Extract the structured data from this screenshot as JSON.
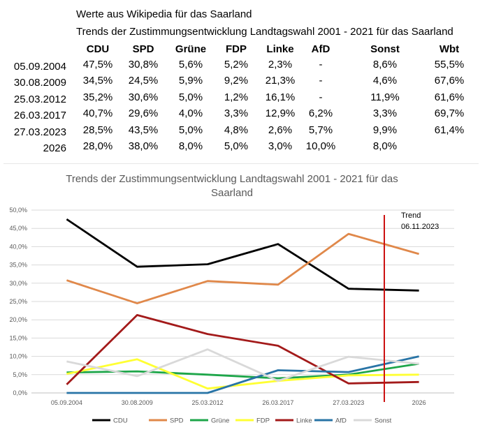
{
  "header": {
    "line1": "Werte aus Wikipedia für das Saarland",
    "line2": "Trends der Zustimmungsentwicklung Landtagswahl 2001 - 2021 für das Saarland"
  },
  "table": {
    "columns": [
      "CDU",
      "SPD",
      "Grüne",
      "FDP",
      "Linke",
      "AfD",
      "Sonst",
      "Wbt"
    ],
    "rows": [
      {
        "date": "05.09.2004",
        "cells": [
          "47,5%",
          "30,8%",
          "5,6%",
          "5,2%",
          "2,3%",
          "-",
          "8,6%",
          "55,5%"
        ]
      },
      {
        "date": "30.08.2009",
        "cells": [
          "34,5%",
          "24,5%",
          "5,9%",
          "9,2%",
          "21,3%",
          "-",
          "4,6%",
          "67,6%"
        ]
      },
      {
        "date": "25.03.2012",
        "cells": [
          "35,2%",
          "30,6%",
          "5,0%",
          "1,2%",
          "16,1%",
          "-",
          "11,9%",
          "61,6%"
        ]
      },
      {
        "date": "26.03.2017",
        "cells": [
          "40,7%",
          "29,6%",
          "4,0%",
          "3,3%",
          "12,9%",
          "6,2%",
          "3,3%",
          "69,7%"
        ]
      },
      {
        "date": "27.03.2023",
        "cells": [
          "28,5%",
          "43,5%",
          "5,0%",
          "4,8%",
          "2,6%",
          "5,7%",
          "9,9%",
          "61,4%"
        ]
      },
      {
        "date": "2026",
        "cells": [
          "28,0%",
          "38,0%",
          "8,0%",
          "5,0%",
          "3,0%",
          "10,0%",
          "8,0%",
          ""
        ]
      }
    ]
  },
  "chart_data": {
    "type": "line",
    "title_line1": "Trends der Zustimmungsentwicklung Landtagswahl 2001 - 2021 für das",
    "title_line2": "Saarland",
    "categories": [
      "05.09.2004",
      "30.08.2009",
      "25.03.2012",
      "26.03.2017",
      "27.03.2023",
      "2026"
    ],
    "ylim": [
      0,
      50
    ],
    "yticks": [
      "0,0%",
      "5,0%",
      "10,0%",
      "15,0%",
      "20,0%",
      "25,0%",
      "30,0%",
      "35,0%",
      "40,0%",
      "45,0%",
      "50,0%"
    ],
    "grid": true,
    "legend_position": "bottom",
    "annotation": {
      "line1": "Trend",
      "line2": "06.11.2023",
      "color": "#cc1111"
    },
    "series": [
      {
        "name": "CDU",
        "color": "#000000",
        "values": [
          47.5,
          34.5,
          35.2,
          40.7,
          28.5,
          28.0
        ]
      },
      {
        "name": "SPD",
        "color": "#e0884a",
        "values": [
          30.8,
          24.5,
          30.6,
          29.6,
          43.5,
          38.0
        ]
      },
      {
        "name": "Grüne",
        "color": "#1ea64a",
        "values": [
          5.6,
          5.9,
          5.0,
          4.0,
          5.0,
          8.0
        ]
      },
      {
        "name": "FDP",
        "color": "#ffff33",
        "values": [
          5.2,
          9.2,
          1.2,
          3.3,
          4.8,
          5.0
        ]
      },
      {
        "name": "Linke",
        "color": "#a31a1a",
        "values": [
          2.3,
          21.3,
          16.1,
          12.9,
          2.6,
          3.0
        ]
      },
      {
        "name": "AfD",
        "color": "#2874a6",
        "values": [
          0,
          0,
          0,
          6.2,
          5.7,
          10.0
        ]
      },
      {
        "name": "Sonst",
        "color": "#d9d9d9",
        "values": [
          8.6,
          4.6,
          11.9,
          3.3,
          9.9,
          8.0
        ]
      }
    ]
  }
}
